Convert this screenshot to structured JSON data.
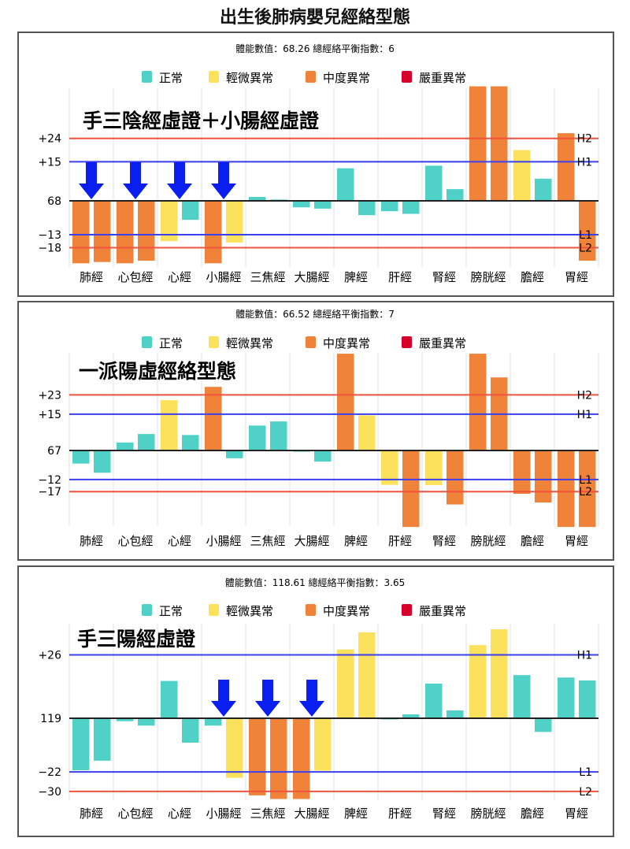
{
  "title": "出生後肺病嬰兒經絡型態",
  "legend": [
    {
      "label": "正常",
      "color": "#4fd1c7"
    },
    {
      "label": "輕微異常",
      "color": "#fbe15c"
    },
    {
      "label": "中度異常",
      "color": "#ef833a"
    },
    {
      "label": "嚴重異常",
      "color": "#d6002b"
    }
  ],
  "status_colors": {
    "normal": "#4fd1c7",
    "mild": "#fbe15c",
    "moderate": "#ef833a",
    "severe": "#d6002b"
  },
  "arrow_color": "#0a1ef0",
  "chart_data": [
    {
      "type": "bar",
      "subtitle": "體能數值：68.26 總經絡平衡指數：6",
      "annotation": "手三陰經虛證＋小腸經虛證",
      "categories": [
        "肺經",
        "心包經",
        "心經",
        "小腸經",
        "三焦經",
        "大腸經",
        "脾經",
        "肝經",
        "腎經",
        "膀胱經",
        "膽經",
        "胃經"
      ],
      "baseline_label": "68",
      "values": [
        [
          -24,
          -23.5
        ],
        [
          -24,
          -23
        ],
        [
          -15.5,
          -7.3
        ],
        [
          -24,
          -16
        ],
        [
          1.5,
          0.5
        ],
        [
          -2.5,
          -3
        ],
        [
          12.5,
          -5.5
        ],
        [
          -4,
          -5
        ],
        [
          13.5,
          4.5
        ],
        [
          44,
          44
        ],
        [
          19.5,
          8.5
        ],
        [
          26,
          -23
        ]
      ],
      "status": [
        [
          "moderate",
          "moderate"
        ],
        [
          "moderate",
          "moderate"
        ],
        [
          "mild",
          "normal"
        ],
        [
          "moderate",
          "mild"
        ],
        [
          "normal",
          "normal"
        ],
        [
          "normal",
          "normal"
        ],
        [
          "normal",
          "normal"
        ],
        [
          "normal",
          "normal"
        ],
        [
          "normal",
          "normal"
        ],
        [
          "moderate",
          "moderate"
        ],
        [
          "mild",
          "normal"
        ],
        [
          "moderate",
          "moderate"
        ]
      ],
      "ylim": [
        -26,
        43
      ],
      "ref_lines": [
        {
          "value": 24,
          "tick": "+24",
          "name": "H2",
          "color": "#f0533f"
        },
        {
          "value": 15,
          "tick": "+15",
          "name": "H1",
          "color": "#3a3ff0"
        },
        {
          "value": -13,
          "tick": "−13",
          "name": "L1",
          "color": "#3a3ff0"
        },
        {
          "value": -18,
          "tick": "−18",
          "name": "L2",
          "color": "#f0533f"
        }
      ],
      "arrows_on": [
        "肺經",
        "心包經",
        "心經",
        "小腸經"
      ]
    },
    {
      "type": "bar",
      "subtitle": "體能數值：66.52 總經絡平衡指數：7",
      "annotation": "一派陽虛經絡型態",
      "categories": [
        "肺經",
        "心包經",
        "心經",
        "小腸經",
        "三焦經",
        "大腸經",
        "脾經",
        "肝經",
        "腎經",
        "膀胱經",
        "膽經",
        "胃經"
      ],
      "baseline_label": "67",
      "values": [
        [
          -5.4,
          -9.2
        ],
        [
          3.3,
          6.8
        ],
        [
          20.8,
          6.4
        ],
        [
          26.3,
          -3.2
        ],
        [
          10.3,
          12
        ],
        [
          -0.5,
          -4.6
        ],
        [
          40,
          14.5
        ],
        [
          -14.2,
          -31.6
        ],
        [
          -14.3,
          -22.3
        ],
        [
          40,
          30.2
        ],
        [
          -17.9,
          -21.5
        ],
        [
          -31.6,
          -31.6
        ]
      ],
      "status": [
        [
          "normal",
          "normal"
        ],
        [
          "normal",
          "normal"
        ],
        [
          "mild",
          "normal"
        ],
        [
          "moderate",
          "normal"
        ],
        [
          "normal",
          "normal"
        ],
        [
          "normal",
          "normal"
        ],
        [
          "moderate",
          "mild"
        ],
        [
          "mild",
          "moderate"
        ],
        [
          "mild",
          "moderate"
        ],
        [
          "moderate",
          "moderate"
        ],
        [
          "moderate",
          "moderate"
        ],
        [
          "moderate",
          "moderate"
        ]
      ],
      "ylim": [
        -31.6,
        40
      ],
      "ref_lines": [
        {
          "value": 23,
          "tick": "+23",
          "name": "H2",
          "color": "#f0533f"
        },
        {
          "value": 15,
          "tick": "+15",
          "name": "H1",
          "color": "#3a3ff0"
        },
        {
          "value": -12,
          "tick": "−12",
          "name": "L1",
          "color": "#3a3ff0"
        },
        {
          "value": -17,
          "tick": "−17",
          "name": "L2",
          "color": "#f0533f"
        }
      ],
      "arrows_on": []
    },
    {
      "type": "bar",
      "subtitle": "體能數值：118.61 總經絡平衡指數：3.65",
      "annotation": "手三陽經虛證",
      "categories": [
        "肺經",
        "心包經",
        "心經",
        "小腸經",
        "三焦經",
        "大腸經",
        "脾經",
        "肝經",
        "腎經",
        "膀胱經",
        "膽經",
        "胃經"
      ],
      "baseline_label": "119",
      "values": [
        [
          -21.3,
          -17.4
        ],
        [
          -1.2,
          -3
        ],
        [
          15.3,
          -10
        ],
        [
          -3,
          -24.4
        ],
        [
          -31.6,
          -33.1
        ],
        [
          -33.1,
          -21.5
        ],
        [
          28.2,
          35.2
        ],
        [
          -0.5,
          1.6
        ],
        [
          14.2,
          3.2
        ],
        [
          30,
          36.5
        ],
        [
          17.7,
          -5.6
        ],
        [
          16.7,
          15.5
        ]
      ],
      "status": [
        [
          "normal",
          "normal"
        ],
        [
          "normal",
          "normal"
        ],
        [
          "normal",
          "normal"
        ],
        [
          "normal",
          "mild"
        ],
        [
          "moderate",
          "moderate"
        ],
        [
          "moderate",
          "mild"
        ],
        [
          "mild",
          "mild"
        ],
        [
          "normal",
          "normal"
        ],
        [
          "normal",
          "normal"
        ],
        [
          "mild",
          "mild"
        ],
        [
          "normal",
          "normal"
        ],
        [
          "normal",
          "normal"
        ]
      ],
      "ylim": [
        -33,
        39
      ],
      "ref_lines": [
        {
          "value": 26,
          "tick": "+26",
          "name": "H1",
          "color": "#3a3ff0"
        },
        {
          "value": -22,
          "tick": "−22",
          "name": "L1",
          "color": "#3a3ff0"
        },
        {
          "value": -30,
          "tick": "−30",
          "name": "L2",
          "color": "#f0533f"
        }
      ],
      "arrows_on": [
        "小腸經",
        "三焦經",
        "大腸經"
      ]
    }
  ]
}
